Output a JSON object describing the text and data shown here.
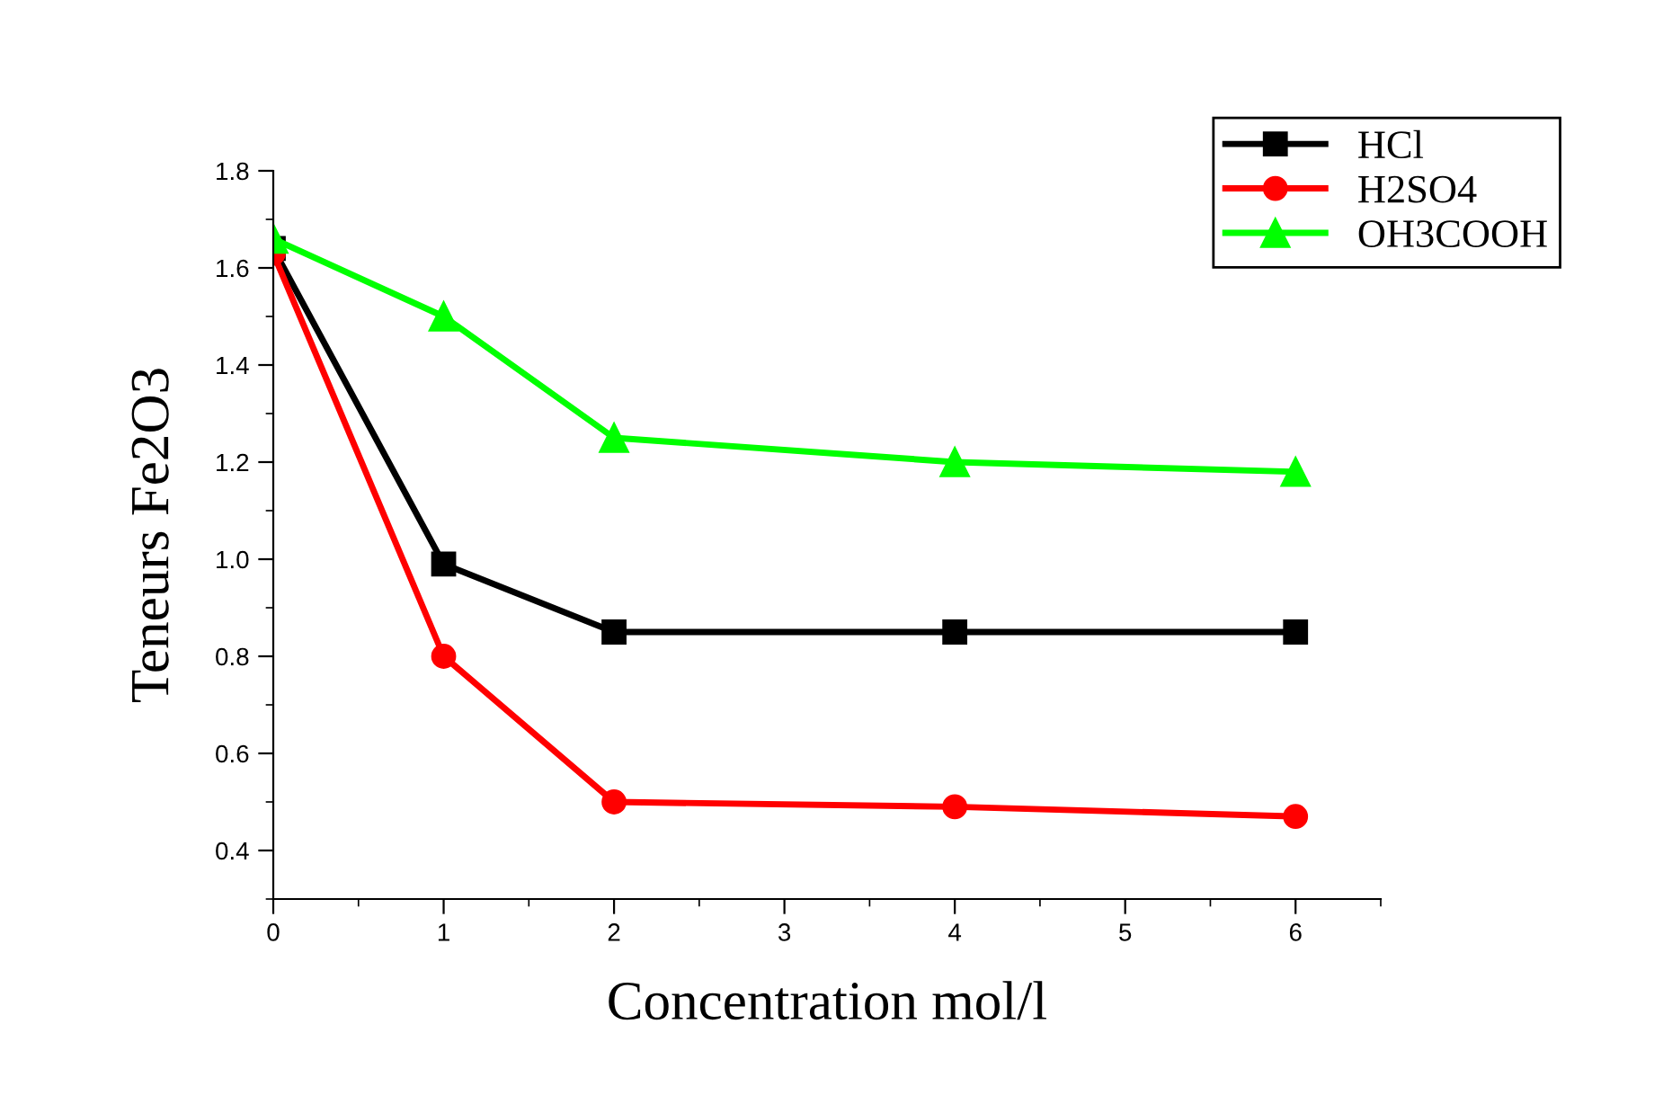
{
  "chart_data": {
    "type": "line",
    "xlabel": "Concentration mol/l",
    "ylabel": "Teneurs Fe2O3",
    "x": [
      0,
      1,
      2,
      4,
      6
    ],
    "series": [
      {
        "name": "HCl",
        "color": "#000000",
        "marker": "square",
        "values": [
          1.64,
          0.99,
          0.85,
          0.85,
          0.85
        ]
      },
      {
        "name": "H2SO4",
        "color": "#ff0000",
        "marker": "circle",
        "values": [
          1.63,
          0.8,
          0.5,
          0.49,
          0.47
        ]
      },
      {
        "name": "OH3COOH",
        "color": "#00ff00",
        "marker": "triangle",
        "values": [
          1.66,
          1.5,
          1.25,
          1.2,
          1.18
        ]
      }
    ],
    "xlim": [
      0,
      6.5
    ],
    "xticks": [
      0,
      1,
      2,
      3,
      4,
      5,
      6
    ],
    "ylim": [
      0.3,
      1.8
    ],
    "yticks": [
      0.4,
      0.6,
      0.8,
      {
        "value": 1,
        "label": "1.0"
      },
      1.2,
      1.4,
      1.6,
      1.8
    ],
    "grid": false,
    "legend": "top right",
    "line_style": "solid"
  }
}
